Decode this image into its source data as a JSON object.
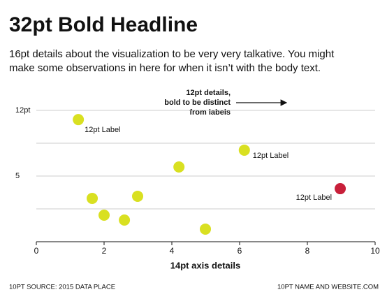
{
  "chart_data": {
    "type": "scatter",
    "title": "32pt Bold Headline",
    "subtitle": [
      "16pt details about the visualization to be very very talkative. You might",
      "make some observations in here for when it isn’t with the body text."
    ],
    "annotation": [
      "12pt details,",
      "bold to be distinct",
      "from labels"
    ],
    "x_label": "14pt axis details",
    "source": "10PT SOURCE: 2015 DATA PLACE",
    "credit": "10PT NAME AND WEBSITE.COM",
    "xlim": [
      0,
      10
    ],
    "xticks": [
      0,
      2,
      4,
      6,
      8,
      10
    ],
    "ylim": [
      0,
      10
    ],
    "yticks": [
      5,
      {
        "value": 10,
        "label": "12pt"
      }
    ],
    "minor_yticks": [
      2.5,
      7.5
    ],
    "grid": true,
    "series": [
      {
        "x": [
          1.24,
          6.14,
          4.21,
          8.97,
          1.65,
          2.99,
          2.0,
          2.6,
          4.99
        ],
        "values": [
          9.3,
          6.97,
          5.69,
          4.04,
          3.3,
          3.46,
          2.02,
          1.65,
          0.96
        ],
        "colors": [
          "#d9e021",
          "#d9e021",
          "#d9e021",
          "#c8203a",
          "#d9e021",
          "#d9e021",
          "#d9e021",
          "#d9e021",
          "#d9e021"
        ],
        "labels": [
          "12pt Label",
          "12pt Label",
          null,
          "12pt Label",
          null,
          null,
          null,
          null,
          null
        ]
      }
    ]
  }
}
